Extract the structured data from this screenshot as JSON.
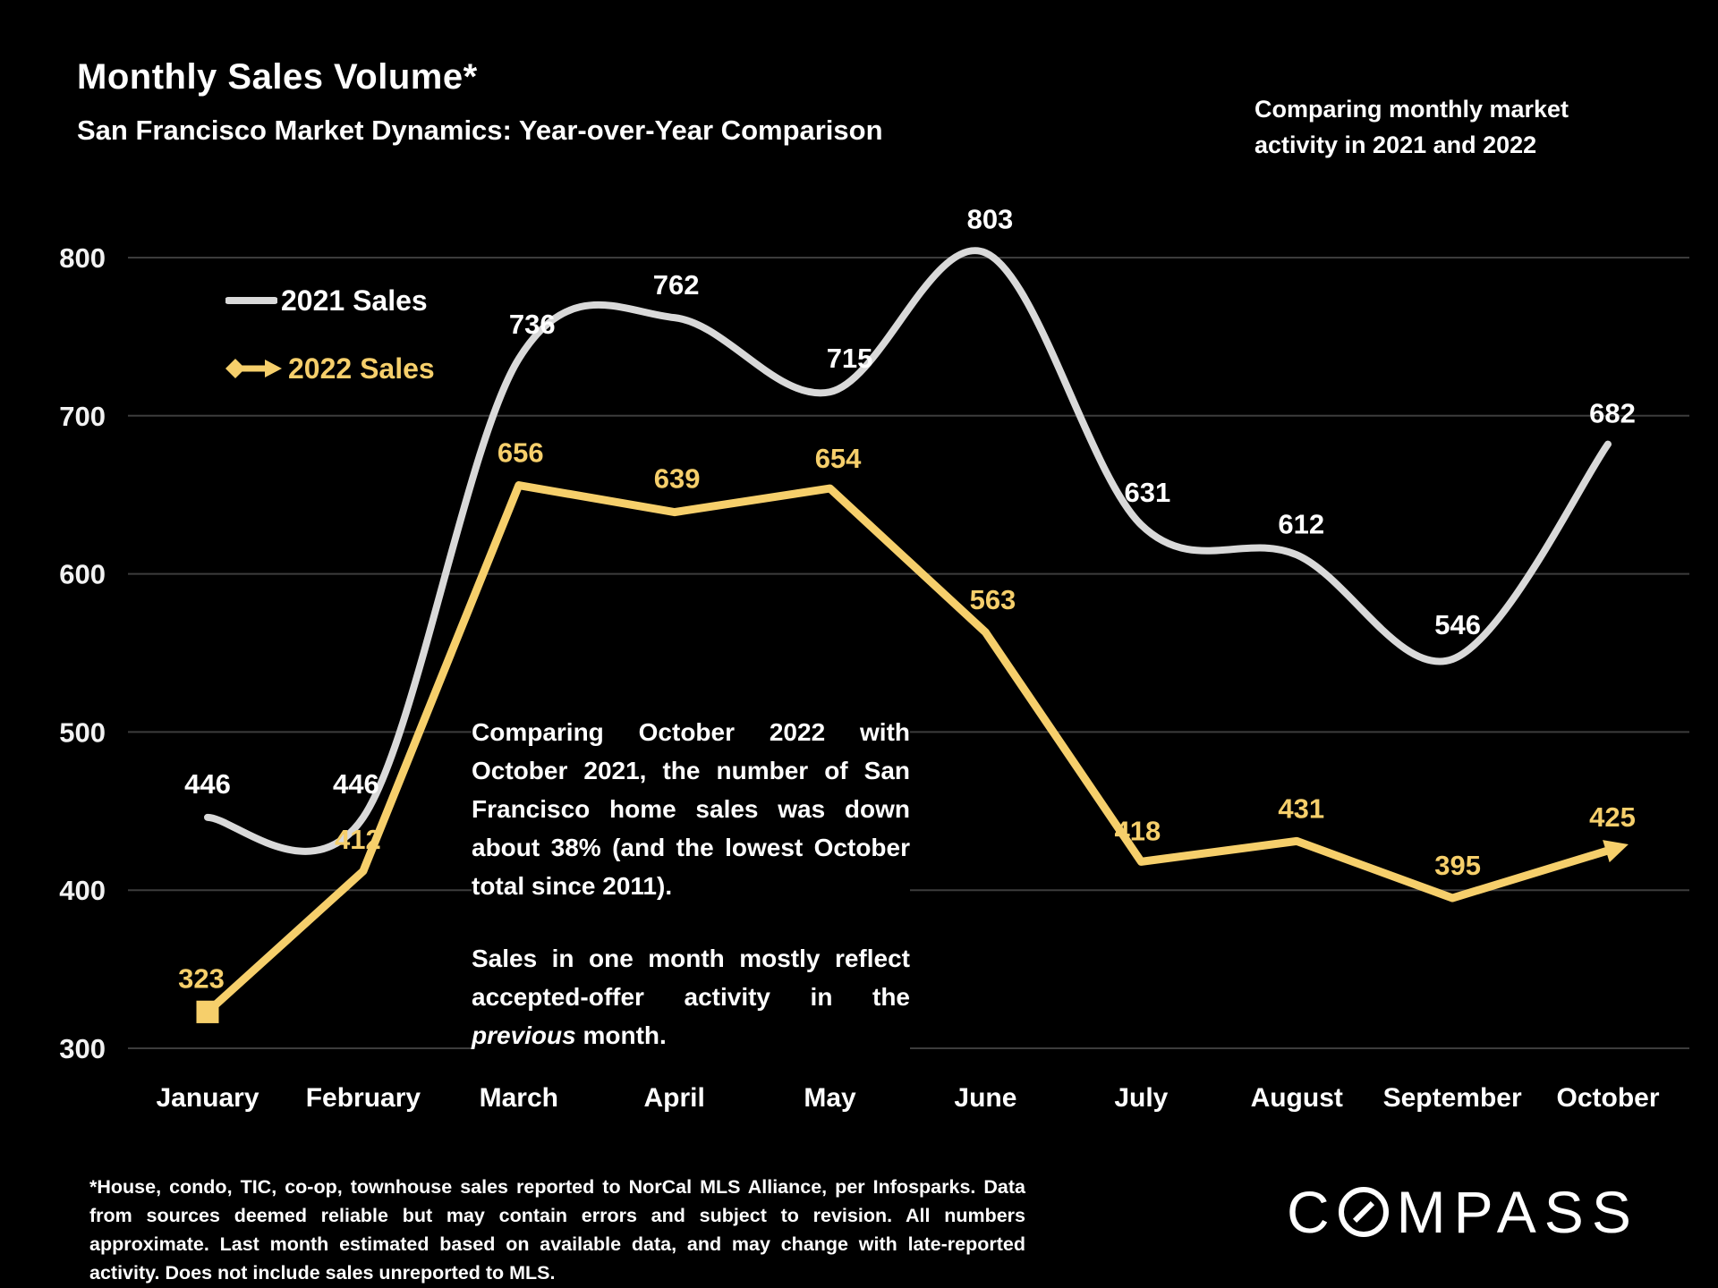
{
  "header": {
    "title": "Monthly Sales Volume*",
    "subtitle": "San Francisco Market Dynamics: Year-over-Year Comparison",
    "note": "Comparing monthly market activity in 2021 and 2022"
  },
  "chart_data": {
    "type": "line",
    "categories": [
      "January",
      "February",
      "March",
      "April",
      "May",
      "June",
      "July",
      "August",
      "September",
      "October"
    ],
    "series": [
      {
        "name": "2021 Sales",
        "color": "#D9D9D9",
        "style": "smooth",
        "values": [
          446,
          446,
          736,
          762,
          715,
          803,
          631,
          612,
          546,
          682
        ]
      },
      {
        "name": "2022 Sales",
        "color": "#F6CF6B",
        "style": "straight",
        "start_marker": "square",
        "end_marker": "arrow",
        "values": [
          323,
          412,
          656,
          639,
          654,
          563,
          418,
          431,
          395,
          425
        ]
      }
    ],
    "ylim": [
      300,
      800
    ],
    "yticks": [
      300,
      400,
      500,
      600,
      700,
      800
    ],
    "grid": "horizontal",
    "legend_position": "top-left"
  },
  "annotation": {
    "para1": "Comparing October 2022 with October 2021, the number of San Francisco home sales was down about 38% (and the lowest October total since 2011).",
    "para2_pre": "Sales in one month mostly reflect accepted-offer activity in the ",
    "para2_italic": "previous",
    "para2_post": " month."
  },
  "footer": {
    "disclaimer": "*House, condo, TIC, co-op, townhouse sales reported to NorCal MLS Alliance, per Infosparks. Data from sources deemed reliable but may contain errors and subject to revision. All numbers approximate. Last month estimated based on available data, and may change with late-reported activity. Does not include sales unreported to MLS.",
    "logo_part1": "C",
    "logo_part2": "MPASS"
  },
  "colors": {
    "background": "#000000",
    "grid": "#3C3C3C",
    "series_2021": "#D9D9D9",
    "series_2022": "#F6CF6B",
    "axis_text": "#F2F2F2",
    "text": "#FFFFFF"
  }
}
